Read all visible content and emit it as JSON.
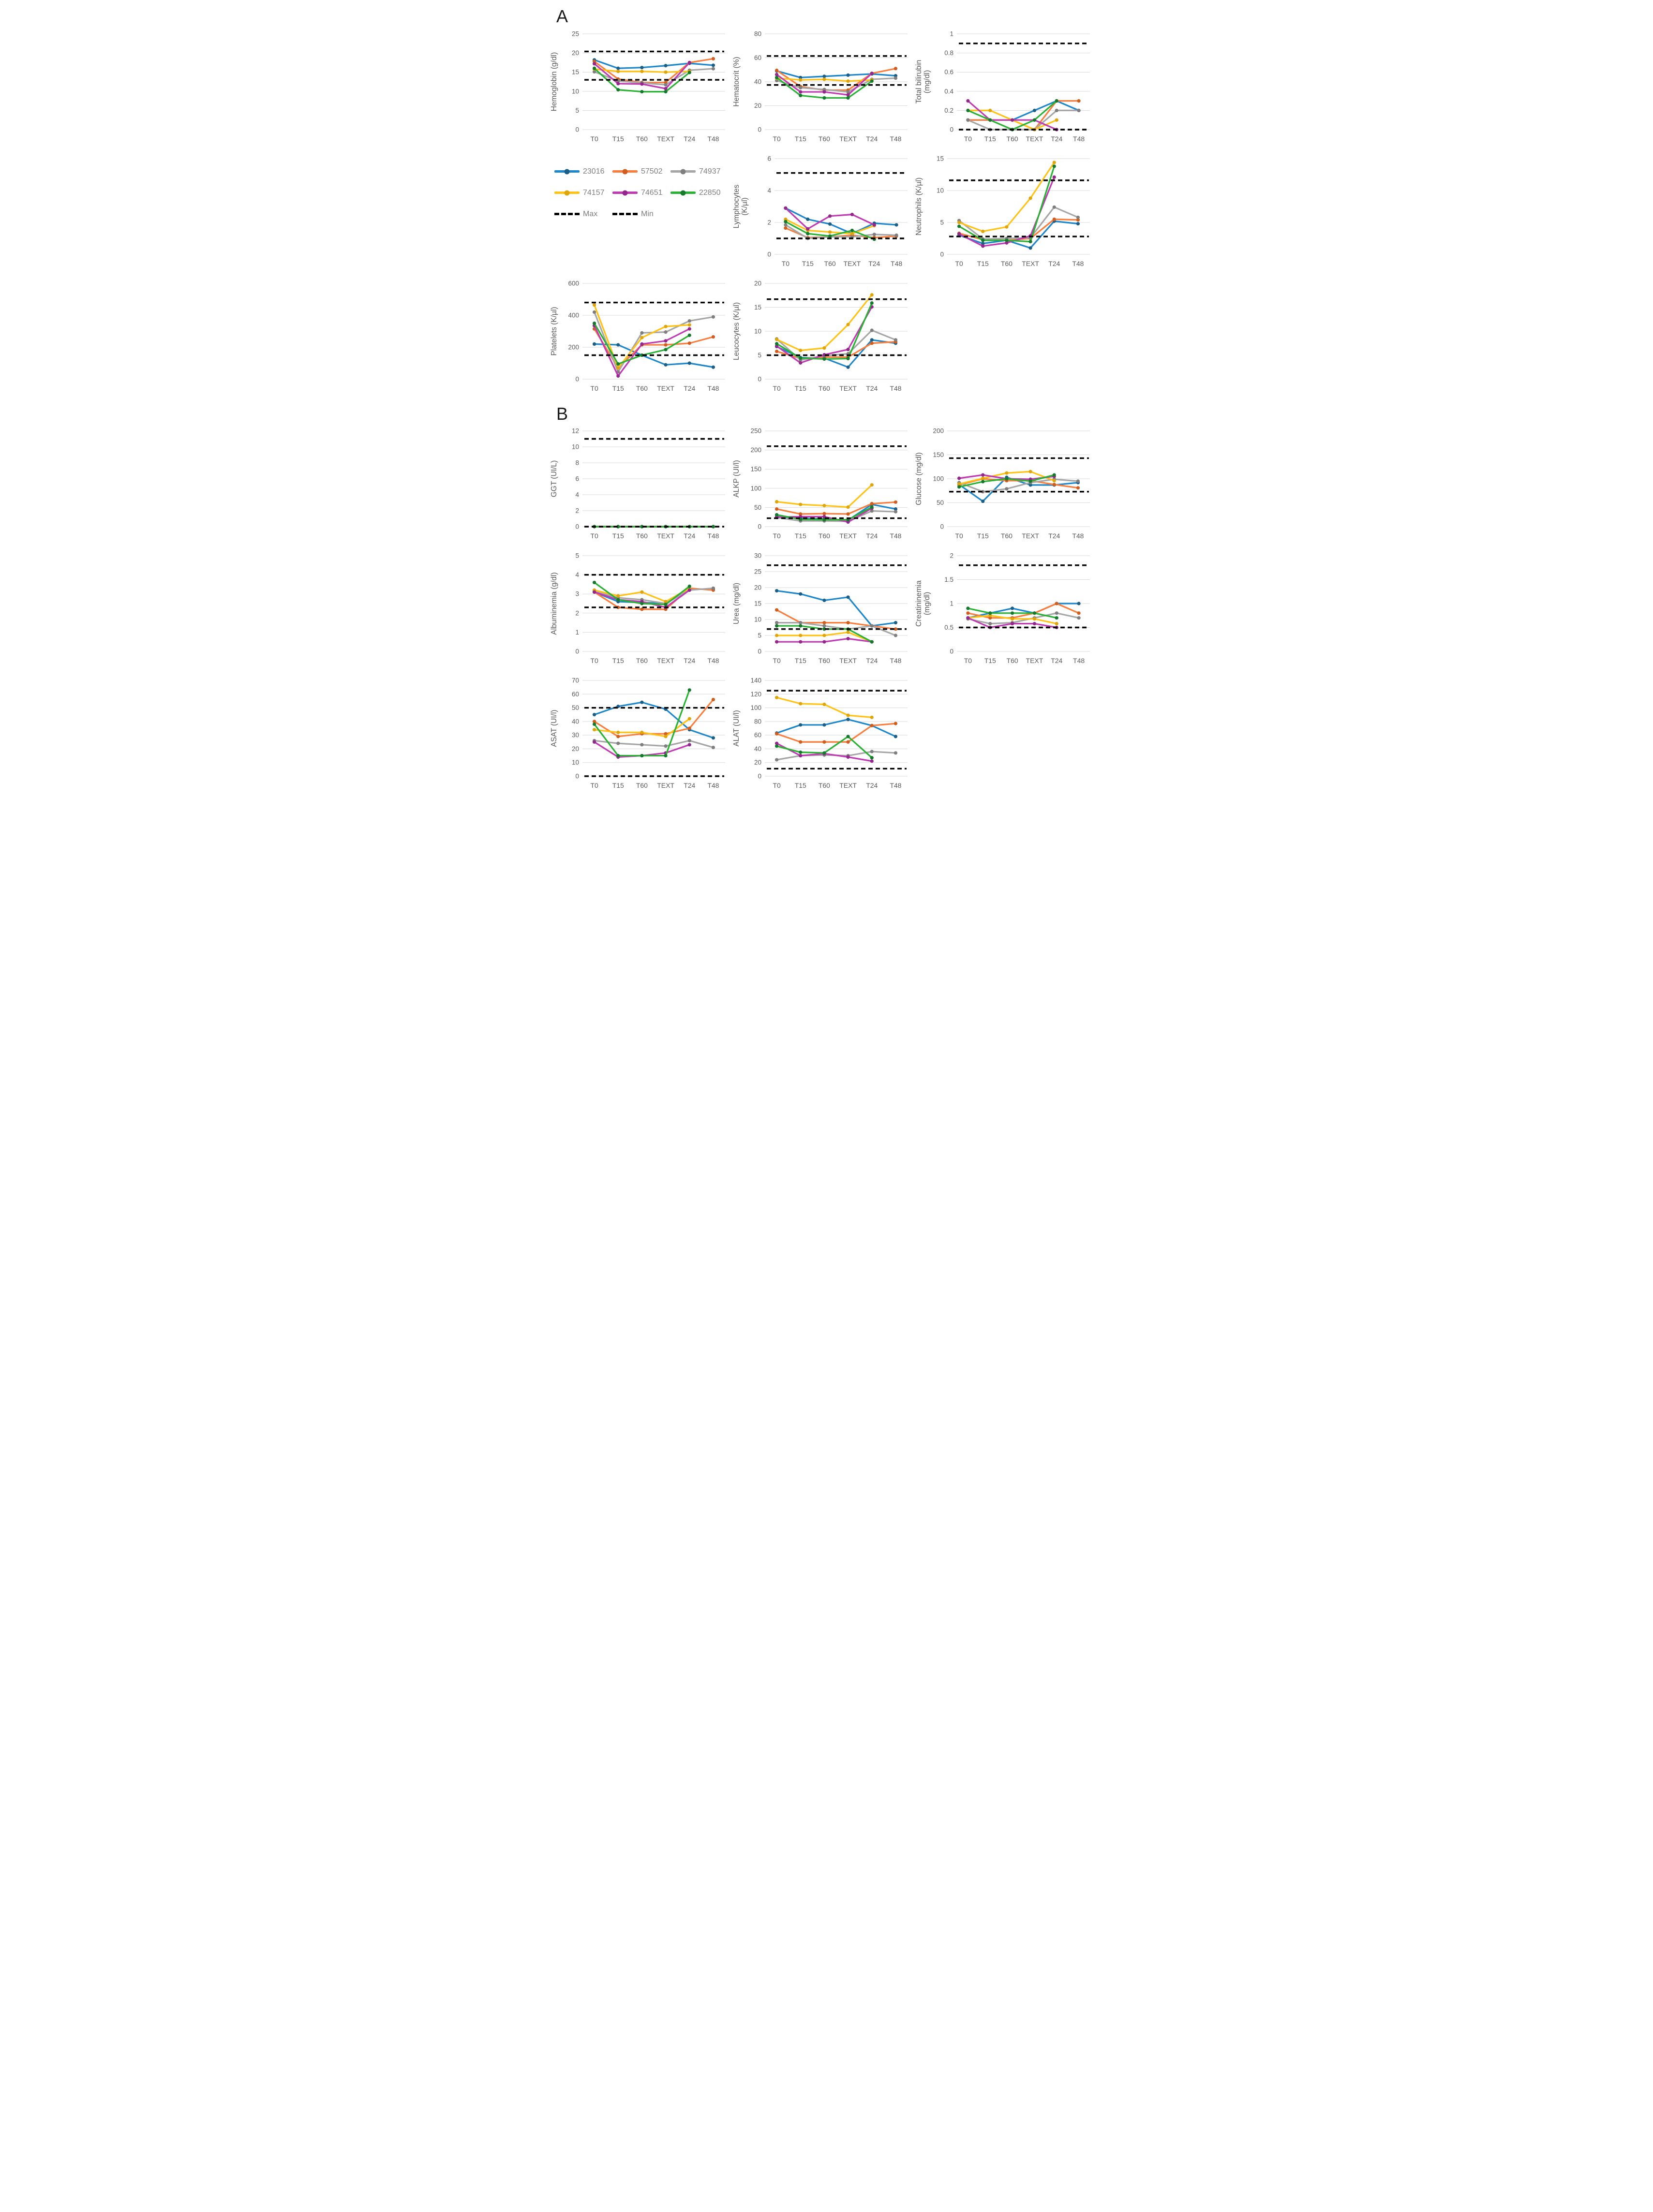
{
  "page": {
    "panel_a_label": "A",
    "panel_b_label": "B"
  },
  "legend": {
    "max_label": "Max",
    "min_label": "Min",
    "dash_color": "#000000",
    "series": [
      {
        "id": "23016",
        "label": "23016",
        "color": "#1E87CB",
        "marker": "#1B5F87"
      },
      {
        "id": "57502",
        "label": "57502",
        "color": "#F97E3D",
        "marker": "#D05E1E"
      },
      {
        "id": "74937",
        "label": "74937",
        "color": "#A6A6A6",
        "marker": "#7F7F7F"
      },
      {
        "id": "74157",
        "label": "74157",
        "color": "#FFC215",
        "marker": "#DFA50D"
      },
      {
        "id": "74651",
        "label": "74651",
        "color": "#C03AB2",
        "marker": "#93278B"
      },
      {
        "id": "22850",
        "label": "22850",
        "color": "#2AB234",
        "marker": "#157A2E"
      }
    ]
  },
  "chart_data": {
    "type": "line",
    "categories": [
      "T0",
      "T15",
      "T60",
      "TEXT",
      "T24",
      "T48"
    ],
    "grid": true,
    "legend_position": "left-middle-panel-A",
    "charts": [
      {
        "id": "hemoglobin",
        "panel": "A",
        "ylabel": [
          "Hemoglobin (g/dl)"
        ],
        "ylim": [
          0,
          25
        ],
        "yticks": [
          0,
          5,
          10,
          15,
          20,
          25
        ],
        "max": 20.4,
        "min": 13,
        "series": {
          "23016": [
            18.2,
            16,
            16.2,
            16.7,
            17.3,
            16.8
          ],
          "57502": [
            17.8,
            13.2,
            12.3,
            12.3,
            17.5,
            18.5
          ],
          "74937": [
            15.1,
            12.7,
            12.2,
            11.7,
            15.5,
            15.9
          ],
          "74157": [
            15.8,
            15.2,
            15.2,
            15,
            15.2,
            null
          ],
          "74651": [
            17.2,
            12,
            11.9,
            10.7,
            17.5,
            null
          ],
          "22850": [
            16,
            10.4,
            9.9,
            9.9,
            14.9,
            null
          ]
        }
      },
      {
        "id": "hematocrit",
        "panel": "A",
        "ylabel": [
          "Hematocrit (%)"
        ],
        "ylim": [
          0,
          80
        ],
        "yticks": [
          0,
          20,
          40,
          60,
          80
        ],
        "max": 61.5,
        "min": 37.3,
        "series": {
          "23016": [
            49,
            43.5,
            44.5,
            45.5,
            46.5,
            45
          ],
          "57502": [
            49.5,
            36,
            33,
            33,
            47,
            51
          ],
          "74937": [
            41,
            35,
            33.5,
            31.5,
            42,
            43
          ],
          "74157": [
            43,
            41.5,
            42,
            40.5,
            41.5,
            null
          ],
          "74651": [
            46,
            31.5,
            31.5,
            29,
            47,
            null
          ],
          "22850": [
            43.5,
            28.5,
            26.5,
            26.5,
            40.5,
            null
          ]
        }
      },
      {
        "id": "total-bilirubin",
        "panel": "A",
        "ylabel": [
          "Total bilirubin",
          "(mg/dl)"
        ],
        "ylim": [
          0,
          1
        ],
        "yticks": [
          0,
          0.2,
          0.4,
          0.6,
          0.8,
          1
        ],
        "max": 0.9,
        "min": 0,
        "series": {
          "23016": [
            0.1,
            0.1,
            0.1,
            0.2,
            0.3,
            0.2
          ],
          "57502": [
            0.1,
            0.1,
            0.1,
            0,
            0.3,
            0.3
          ],
          "74937": [
            0.1,
            0,
            0,
            0,
            0.2,
            0.2
          ],
          "74157": [
            0.2,
            0.2,
            0.1,
            0,
            0.1,
            null
          ],
          "74651": [
            0.3,
            0.1,
            0.1,
            0.1,
            0,
            null
          ],
          "22850": [
            0.2,
            0.1,
            0,
            0.1,
            0.3,
            null
          ]
        }
      },
      {
        "id": "lymphocytes",
        "panel": "A",
        "ylabel": [
          "Lymphocytes",
          "(K/µl)"
        ],
        "ylim": [
          0,
          6
        ],
        "yticks": [
          0,
          2,
          4,
          6
        ],
        "max": 5.1,
        "min": 1,
        "series": {
          "23016": [
            2.9,
            2.2,
            1.9,
            1.3,
            1.95,
            1.85
          ],
          "57502": [
            1.65,
            1.05,
            1.1,
            1.2,
            1.05,
            1.15
          ],
          "74937": [
            1.85,
            1,
            1.1,
            1.1,
            1.25,
            1.2
          ],
          "74157": [
            2.2,
            1.5,
            1.4,
            1.3,
            1.8,
            null
          ],
          "74651": [
            2.9,
            1.6,
            2.4,
            2.5,
            1.85,
            null
          ],
          "22850": [
            2.05,
            1.3,
            1.15,
            1.5,
            0.95,
            null
          ]
        }
      },
      {
        "id": "neutrophils",
        "panel": "A",
        "ylabel": [
          "Neutrophils (K/µl)"
        ],
        "ylim": [
          0,
          15
        ],
        "yticks": [
          0,
          5,
          10,
          15
        ],
        "max": 11.6,
        "min": 2.8,
        "series": {
          "23016": [
            3,
            1.7,
            2.2,
            1,
            5.2,
            4.8
          ],
          "57502": [
            3.3,
            2.3,
            2.2,
            2.5,
            5.5,
            5.4
          ],
          "74937": [
            5.3,
            2.4,
            2.5,
            2.6,
            7.4,
            5.8
          ],
          "74157": [
            5,
            3.6,
            4.3,
            8.8,
            14.4,
            null
          ],
          "74651": [
            3.2,
            1.3,
            1.8,
            2.9,
            12.1,
            null
          ],
          "22850": [
            4.4,
            2.2,
            2.2,
            2,
            13.8,
            null
          ]
        }
      },
      {
        "id": "platelets",
        "panel": "A",
        "ylabel": [
          "Platelets (K/µl)"
        ],
        "ylim": [
          0,
          600
        ],
        "yticks": [
          0,
          200,
          400,
          600
        ],
        "max": 480,
        "min": 150,
        "series": {
          "23016": [
            220,
            215,
            150,
            90,
            100,
            75
          ],
          "57502": [
            315,
            70,
            215,
            215,
            225,
            265
          ],
          "74937": [
            420,
            45,
            290,
            295,
            365,
            390
          ],
          "74157": [
            465,
            70,
            260,
            330,
            340,
            null
          ],
          "74651": [
            335,
            20,
            220,
            240,
            315,
            null
          ],
          "22850": [
            350,
            95,
            150,
            185,
            275,
            null
          ]
        }
      },
      {
        "id": "leucocytes",
        "panel": "A",
        "ylabel": [
          "Leucocytes (K/µl)"
        ],
        "ylim": [
          0,
          20
        ],
        "yticks": [
          0,
          5,
          10,
          15,
          20
        ],
        "max": 16.7,
        "min": 5,
        "series": {
          "23016": [
            6.8,
            4.5,
            4.4,
            2.5,
            8.2,
            7.5
          ],
          "57502": [
            5.8,
            4.3,
            4.6,
            4.6,
            7.5,
            7.8
          ],
          "74937": [
            8.4,
            4,
            4.9,
            5.3,
            10.2,
            8.2
          ],
          "74157": [
            8.3,
            6,
            6.5,
            11.4,
            17.6,
            null
          ],
          "74651": [
            6.9,
            3.4,
            5.1,
            6.2,
            15.1,
            null
          ],
          "22850": [
            7.4,
            4.4,
            4.2,
            4.3,
            15.9,
            null
          ]
        }
      },
      {
        "id": "ggt",
        "panel": "B",
        "ylabel": [
          "GGT (UI/L)"
        ],
        "ylim": [
          0,
          12
        ],
        "yticks": [
          0,
          2,
          4,
          6,
          8,
          10,
          12
        ],
        "max": 11,
        "min": 0,
        "series": {
          "23016": [
            0,
            0,
            0,
            0,
            0,
            0
          ],
          "57502": [
            0,
            0,
            0,
            0,
            0,
            0
          ],
          "74937": [
            0,
            0,
            0,
            0,
            0,
            0
          ],
          "74157": [
            0,
            0,
            0,
            0,
            0,
            null
          ],
          "74651": [
            0,
            0,
            0,
            0,
            0,
            null
          ],
          "22850": [
            0,
            0,
            0,
            0,
            0,
            0
          ]
        }
      },
      {
        "id": "alkp",
        "panel": "B",
        "ylabel": [
          "ALKP (UI/l)"
        ],
        "ylim": [
          0,
          250
        ],
        "yticks": [
          0,
          50,
          100,
          150,
          200,
          250
        ],
        "max": 210,
        "min": 22,
        "series": {
          "23016": [
            26,
            22,
            20,
            17,
            58,
            46
          ],
          "57502": [
            46,
            33,
            34,
            33,
            60,
            64
          ],
          "74937": [
            24,
            15,
            15,
            14,
            41,
            39
          ],
          "74157": [
            65,
            58,
            55,
            51,
            109,
            null
          ],
          "74651": [
            25,
            26,
            26,
            12,
            48,
            null
          ],
          "22850": [
            31,
            19,
            18,
            18,
            51,
            null
          ]
        }
      },
      {
        "id": "glucose",
        "panel": "B",
        "ylabel": [
          "Glucose (mg/dl)"
        ],
        "ylim": [
          0,
          200
        ],
        "yticks": [
          0,
          50,
          100,
          150,
          200
        ],
        "max": 143,
        "min": 73,
        "series": {
          "23016": [
            88,
            53,
            103,
            87,
            87,
            92
          ],
          "57502": [
            87,
            100,
            96,
            96,
            88,
            81
          ],
          "74937": [
            92,
            73,
            79,
            92,
            99,
            95
          ],
          "74157": [
            89,
            101,
            112,
            115,
            96,
            null
          ],
          "74651": [
            101,
            108,
            100,
            99,
            105,
            null
          ],
          "22850": [
            83,
            94,
            100,
            95,
            108,
            null
          ]
        }
      },
      {
        "id": "albuminemia",
        "panel": "B",
        "ylabel": [
          "Albuminemia (g/dl)"
        ],
        "ylim": [
          0,
          5
        ],
        "yticks": [
          0,
          1,
          2,
          3,
          4,
          5
        ],
        "max": 4,
        "min": 2.3,
        "series": {
          "23016": [
            3.1,
            2.6,
            2.55,
            2.5,
            3.25,
            3.25
          ],
          "57502": [
            3.1,
            2.3,
            2.2,
            2.2,
            3.3,
            3.2
          ],
          "74937": [
            3.15,
            2.8,
            2.7,
            2.5,
            3.2,
            3.3
          ],
          "74157": [
            3.2,
            2.9,
            3.1,
            2.6,
            3.3,
            null
          ],
          "74651": [
            3.1,
            2.7,
            2.6,
            2.3,
            3.2,
            null
          ],
          "22850": [
            3.6,
            2.7,
            2.5,
            2.45,
            3.4,
            null
          ]
        }
      },
      {
        "id": "urea",
        "panel": "B",
        "ylabel": [
          "Urea (mg/dl)"
        ],
        "ylim": [
          0,
          30
        ],
        "yticks": [
          0,
          5,
          10,
          15,
          20,
          25,
          30
        ],
        "max": 27,
        "min": 7,
        "series": {
          "23016": [
            19,
            18,
            16,
            17,
            8,
            9
          ],
          "57502": [
            13,
            9,
            9,
            9,
            8,
            7
          ],
          "74937": [
            9,
            9,
            8,
            7,
            8,
            5
          ],
          "74157": [
            5,
            5,
            5,
            6,
            3,
            null
          ],
          "74651": [
            3,
            3,
            3,
            4,
            3,
            null
          ],
          "22850": [
            8,
            8,
            7,
            7,
            3,
            null
          ]
        }
      },
      {
        "id": "creatininemia",
        "panel": "B",
        "ylabel": [
          "Creatininemia",
          "(mg/dl)"
        ],
        "ylim": [
          0,
          2
        ],
        "yticks": [
          0,
          0.5,
          1,
          1.5,
          2
        ],
        "max": 1.8,
        "min": 0.5,
        "series": {
          "23016": [
            0.7,
            0.8,
            0.9,
            0.8,
            1,
            1
          ],
          "57502": [
            0.8,
            0.7,
            0.7,
            0.8,
            1,
            0.8
          ],
          "74937": [
            0.68,
            0.58,
            0.6,
            0.7,
            0.8,
            0.7
          ],
          "74157": [
            0.7,
            0.75,
            0.68,
            0.68,
            0.58,
            null
          ],
          "74651": [
            0.7,
            0.5,
            0.58,
            0.58,
            0.5,
            null
          ],
          "22850": [
            0.9,
            0.8,
            0.8,
            0.8,
            0.7,
            null
          ]
        }
      },
      {
        "id": "asat",
        "panel": "B",
        "ylabel": [
          "ASAT (UI/l)"
        ],
        "ylim": [
          0,
          70
        ],
        "yticks": [
          0,
          10,
          20,
          30,
          40,
          50,
          60,
          70
        ],
        "max": 50,
        "min": 0,
        "series": {
          "23016": [
            45,
            51,
            54,
            49,
            34,
            28
          ],
          "57502": [
            40,
            29,
            31,
            31,
            35,
            56
          ],
          "74937": [
            26,
            24,
            23,
            22,
            26,
            21
          ],
          "74157": [
            34,
            32,
            32,
            29,
            42,
            null
          ],
          "74651": [
            25,
            14,
            15,
            17,
            23,
            null
          ],
          "22850": [
            38,
            15,
            15,
            15,
            63,
            null
          ]
        }
      },
      {
        "id": "alat",
        "panel": "B",
        "ylabel": [
          "ALAT (UI/l)"
        ],
        "ylim": [
          0,
          140
        ],
        "yticks": [
          0,
          20,
          40,
          60,
          80,
          100,
          120,
          140
        ],
        "max": 125,
        "min": 11,
        "series": {
          "23016": [
            63,
            75,
            75,
            83,
            74,
            58
          ],
          "57502": [
            62,
            50,
            50,
            50,
            74,
            77
          ],
          "74937": [
            24,
            30,
            31,
            30,
            36,
            34
          ],
          "74157": [
            115,
            106,
            105,
            89,
            86,
            null
          ],
          "74651": [
            48,
            30,
            33,
            28,
            22,
            null
          ],
          "22850": [
            44,
            35,
            34,
            58,
            27,
            null
          ]
        }
      }
    ],
    "styles": {
      "gridline_color": "#d9d9d9",
      "tick_color": "#595959",
      "axis_label_color": "#595959",
      "refline_color": "#000000"
    }
  }
}
